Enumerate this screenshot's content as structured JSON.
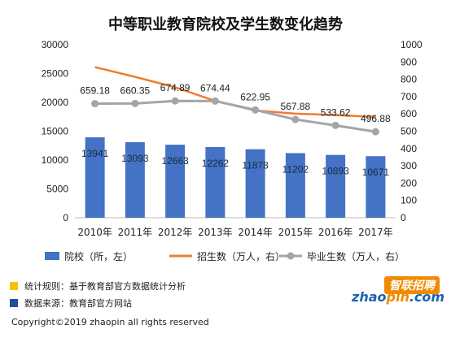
{
  "chart_data": {
    "type": "bar",
    "title": "中等职业教育院校及学生数变化趋势",
    "categories": [
      "2010年",
      "2011年",
      "2012年",
      "2013年",
      "2014年",
      "2015年",
      "2016年",
      "2017年"
    ],
    "series": [
      {
        "name": "院校（所，左）",
        "type": "bar",
        "axis": "left",
        "color": "#4472c4",
        "values": [
          13941,
          13093,
          12663,
          12262,
          11878,
          11202,
          10893,
          10671
        ],
        "labels": [
          "13941",
          "13093",
          "12663",
          "12262",
          "11878",
          "11202",
          "10893",
          "10671"
        ]
      },
      {
        "name": "招生数（万人，右）",
        "type": "line",
        "axis": "right",
        "color": "#ed7d31",
        "values": [
          870.4,
          813.9,
          754.1,
          674.8,
          619.8,
          601.3,
          593.3,
          582.4
        ]
      },
      {
        "name": "毕业生数（万人，右）",
        "type": "line",
        "axis": "right",
        "color": "#a5a5a5",
        "values": [
          659.18,
          660.35,
          674.89,
          674.44,
          622.95,
          567.88,
          533.62,
          496.88
        ],
        "labels": [
          "659.18",
          "660.35",
          "674.89",
          "674.44",
          "622.95",
          "567.88",
          "533.62",
          "496.88"
        ]
      }
    ],
    "y_left": {
      "min": 0,
      "max": 30000,
      "step": 5000,
      "ticks": [
        "0",
        "5000",
        "10000",
        "15000",
        "20000",
        "25000",
        "30000"
      ]
    },
    "y_right": {
      "min": 0,
      "max": 1000,
      "step": 100,
      "ticks": [
        "0",
        "100",
        "200",
        "300",
        "400",
        "500",
        "600",
        "700",
        "800",
        "900",
        "1000"
      ]
    },
    "grid": false,
    "legend_position": "bottom"
  },
  "notes": {
    "rule": "统计规则：基于教育部官方数据统计分析",
    "source": "数据来源：教育部官方网站",
    "rule_color": "#ffc000",
    "source_color": "#1f4e9c"
  },
  "logo": {
    "cn": "智联招聘",
    "en_part1": "zhao",
    "en_part2": "pin",
    "en_part3": ".com"
  },
  "copyright": "Copyright©2019 zhaopin all rights reserved"
}
